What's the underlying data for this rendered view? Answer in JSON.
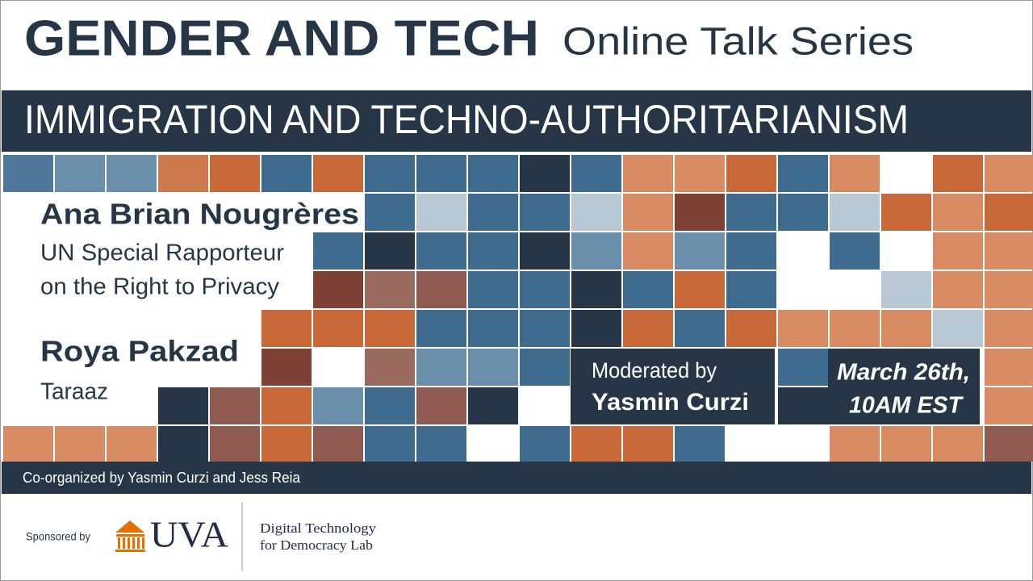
{
  "header": {
    "title": "GENDER AND TECH",
    "subtitle": "Online Talk Series"
  },
  "banner": "IMMIGRATION AND TECHNO-AUTHORITARIANISM",
  "speakers": [
    {
      "name": "Ana Brian Nougrères",
      "role": [
        "UN Special Rapporteur",
        "on the Right to Privacy"
      ]
    },
    {
      "name": "Roya Pakzad",
      "role": [
        "Taraaz"
      ]
    }
  ],
  "moderator": {
    "label": "Moderated by",
    "name": "Yasmin Curzi"
  },
  "date": [
    "March 26th,",
    "10AM EST"
  ],
  "organizers": "Co-organized by Yasmin Curzi and Jess Reia",
  "sponsor": {
    "label": "Sponsored by",
    "logo": "UVA",
    "lab": [
      "Digital Technology",
      "for Democracy Lab"
    ]
  }
}
